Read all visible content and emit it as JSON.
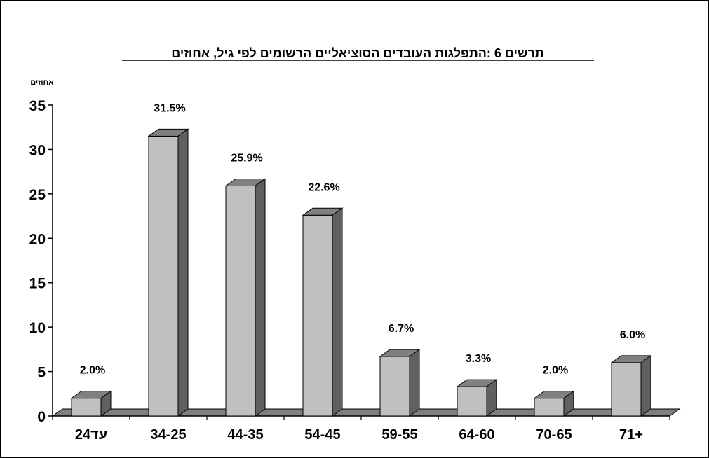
{
  "chart_data": {
    "type": "bar",
    "title": "תרשים 6 :התפלגות העובדים הסוציאליים הרשומים לפי גיל, אחוזים",
    "ylabel": "אחוזים",
    "xlabel": "",
    "categories": [
      "עד24",
      "34-25",
      "44-35",
      "54-45",
      "59-55",
      "64-60",
      "70-65",
      "71+"
    ],
    "values": [
      2.0,
      31.5,
      25.9,
      22.6,
      6.7,
      3.3,
      2.0,
      6.0
    ],
    "data_labels": [
      "2.0%",
      "31.5%",
      "25.9%",
      "22.6%",
      "6.7%",
      "3.3%",
      "2.0%",
      "6.0%"
    ],
    "ylim": [
      0,
      35
    ],
    "yticks": [
      "0",
      "5",
      "10",
      "15",
      "20",
      "25",
      "30",
      "35"
    ],
    "grid": false,
    "legend": "none",
    "colors": {
      "bar_front": "#c0c0c0",
      "bar_top": "#808080",
      "bar_side": "#606060",
      "floor": "#808080"
    }
  }
}
